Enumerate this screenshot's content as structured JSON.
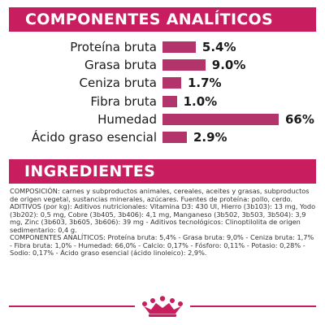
{
  "sections": {
    "analytics_title": "COMPONENTES ANALÍTICOS",
    "ingredients_title": "INGREDIENTES"
  },
  "nutrients": [
    {
      "label": "Proteína bruta",
      "display": "5.4%",
      "value": 5.4
    },
    {
      "label": "Grasa bruta",
      "display": "9.0%",
      "value": 9.0
    },
    {
      "label": "Ceniza bruta",
      "display": "1.7%",
      "value": 1.7
    },
    {
      "label": "Fibra bruta",
      "display": "1.0%",
      "value": 1.0
    },
    {
      "label": "Humedad",
      "display": "66%",
      "value": 66
    },
    {
      "label": "Ácido graso esencial",
      "display": "2.9%",
      "value": 2.9
    }
  ],
  "ingredients_paragraphs": [
    "COMPOSICIÓN: carnes y subproductos animales, cereales, aceites y grasas, subproductos de origen vegetal, sustancias minerales, azúcares. Fuentes de proteína: pollo, cerdo.",
    "ADITIVOS (por kg): Aditivos nutricionales: Vitamina D3: 430 UI, Hierro (3b103): 13 mg, Yodo (3b202): 0,5 mg, Cobre (3b405, 3b406): 4,1 mg, Manganeso (3b502, 3b503, 3b504): 3,9 mg, Zinc (3b603, 3b605, 3b606): 39 mg - Aditivos tecnológicos: Clinoptilolita de origen sedimentario: 0,4 g.",
    "COMPONENTES ANALÍTICOS: Proteína bruta: 5,4% - Grasa bruta: 9,0% - Ceniza bruta: 1,7% - Fibra bruta: 1,0% - Humedad: 66,0% - Calcio: 0,17% - Fósforo: 0,11% - Potasio: 0,28% - Sodio: 0,17% - Ácido graso esencial (ácido linoleico): 2,9%."
  ],
  "colors": {
    "brand": "#c81e5f",
    "bar": "#b3346a"
  },
  "logo": {
    "icon": "royal-crown-icon"
  }
}
